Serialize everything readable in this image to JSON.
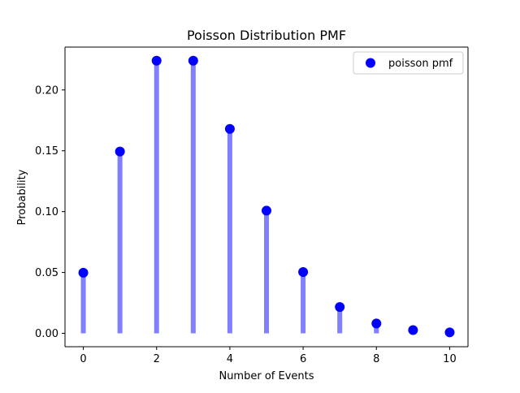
{
  "chart_data": {
    "type": "scatter",
    "title": "Poisson Distribution PMF",
    "xlabel": "Number of Events",
    "ylabel": "Probability",
    "xlim": [
      -0.5,
      10.5
    ],
    "ylim": [
      -0.011,
      0.2352
    ],
    "x_ticks": [
      0,
      2,
      4,
      6,
      8,
      10
    ],
    "x_tick_labels": [
      "0",
      "2",
      "4",
      "6",
      "8",
      "10"
    ],
    "y_ticks": [
      0.0,
      0.05,
      0.1,
      0.15,
      0.2
    ],
    "y_tick_labels": [
      "0.00",
      "0.05",
      "0.10",
      "0.15",
      "0.20"
    ],
    "grid": false,
    "legend_position": "top-right",
    "series": [
      {
        "name": "poisson pmf",
        "x": [
          0,
          1,
          2,
          3,
          4,
          5,
          6,
          7,
          8,
          9,
          10
        ],
        "values": [
          0.0498,
          0.1494,
          0.224,
          0.224,
          0.168,
          0.1008,
          0.0504,
          0.0216,
          0.0081,
          0.0027,
          0.0008
        ],
        "marker_color": "#0000ff",
        "stem_color": "#0000ff",
        "stem_alpha": 0.5
      }
    ]
  }
}
